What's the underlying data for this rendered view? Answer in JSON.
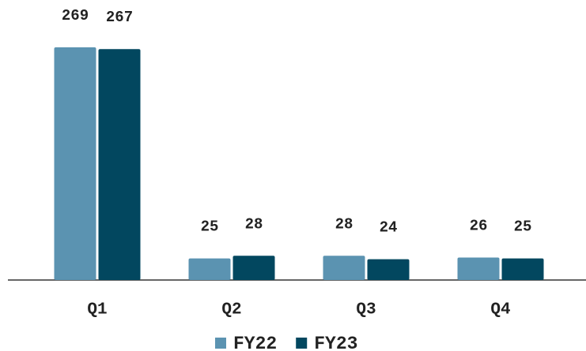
{
  "chart_data": {
    "type": "bar",
    "categories": [
      "Q1",
      "Q2",
      "Q3",
      "Q4"
    ],
    "series": [
      {
        "name": "FY22",
        "color": "#5b93b1",
        "values": [
          269,
          25,
          28,
          26
        ]
      },
      {
        "name": "FY23",
        "color": "#02475f",
        "values": [
          267,
          28,
          24,
          25
        ]
      }
    ],
    "legend": "bottom"
  }
}
